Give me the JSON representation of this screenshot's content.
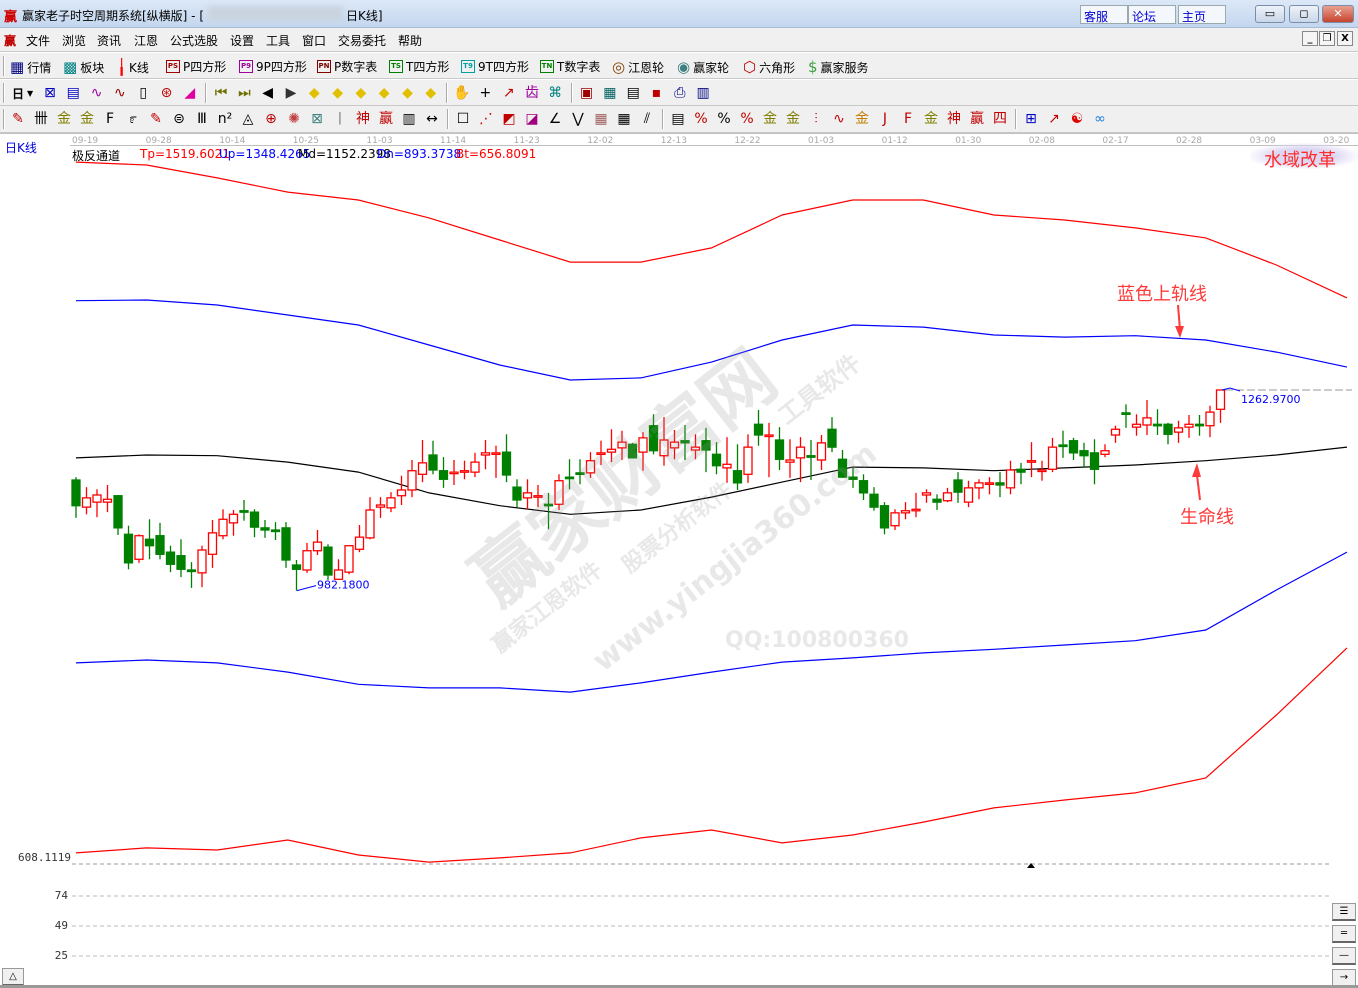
{
  "window": {
    "logo": "赢",
    "title": "赢家老子时空周期系统[纵横版] - [",
    "title_suffix": "日K线]",
    "links": [
      "客服",
      "论坛",
      "主页"
    ],
    "controls": [
      "minimize",
      "maximize",
      "close"
    ]
  },
  "menu": {
    "logo": "赢",
    "items": [
      "文件",
      "浏览",
      "资讯",
      "江恩",
      "公式选股",
      "设置",
      "工具",
      "窗口",
      "交易委托",
      "帮助"
    ]
  },
  "toolbar1": [
    {
      "label": "行情",
      "icon": "grid-table-icon",
      "glyph": "▦",
      "color": "#000080"
    },
    {
      "label": "板块",
      "icon": "blocks-icon",
      "glyph": "▩",
      "color": "#008080"
    },
    {
      "label": "K线",
      "icon": "candlestick-icon",
      "glyph": "╽",
      "color": "#ff0000"
    },
    {
      "label": "P四方形",
      "icon": "ps-icon",
      "glyph": "PS",
      "color": "#a00000",
      "box": true
    },
    {
      "label": "9P四方形",
      "icon": "p9-icon",
      "glyph": "P9",
      "color": "#a000a0",
      "box": true
    },
    {
      "label": "P数字表",
      "icon": "pn-icon",
      "glyph": "PN",
      "color": "#800000",
      "box": true
    },
    {
      "label": "T四方形",
      "icon": "ts-icon",
      "glyph": "TS",
      "color": "#008000",
      "box": true
    },
    {
      "label": "9T四方形",
      "icon": "t9-icon",
      "glyph": "T9",
      "color": "#00a0a0",
      "box": true
    },
    {
      "label": "T数字表",
      "icon": "tn-icon",
      "glyph": "TN",
      "color": "#008000",
      "box": true
    },
    {
      "label": "江恩轮",
      "icon": "gann-wheel-icon",
      "glyph": "◎",
      "color": "#804000"
    },
    {
      "label": "赢家轮",
      "icon": "big-wheel-icon",
      "glyph": "◉",
      "color": "#408080"
    },
    {
      "label": "六角形",
      "icon": "hexagon-icon",
      "glyph": "⬡",
      "color": "#c00000"
    },
    {
      "label": "赢家服务",
      "icon": "dollar-icon",
      "glyph": "$",
      "color": "#40a040"
    }
  ],
  "period": {
    "value": "日"
  },
  "toolbar2": [
    {
      "icon": "chart-style-icon",
      "glyph": "⊠",
      "color": "#0000c0"
    },
    {
      "icon": "notes-icon",
      "glyph": "▤",
      "color": "#0000c0"
    },
    {
      "icon": "wave3-icon",
      "glyph": "∿",
      "color": "#a000a0"
    },
    {
      "icon": "wave9-icon",
      "glyph": "∿",
      "color": "#a00000"
    },
    {
      "icon": "candle-type-icon",
      "glyph": "▯",
      "color": "#000"
    },
    {
      "icon": "cycle-icon",
      "glyph": "⊛",
      "color": "#c00000"
    },
    {
      "icon": "flag-icon",
      "glyph": "◢",
      "color": "#e000a0"
    },
    {
      "icon": "first-icon",
      "glyph": "⏮",
      "color": "#707000"
    },
    {
      "icon": "last-icon",
      "glyph": "⏭",
      "color": "#707000"
    },
    {
      "icon": "prev-icon",
      "glyph": "◀",
      "color": "#000"
    },
    {
      "icon": "next-icon",
      "glyph": "▶",
      "color": "#333"
    },
    {
      "icon": "left-diamond-icon",
      "glyph": "◆",
      "color": "#e0c000"
    },
    {
      "icon": "right-diamond-icon",
      "glyph": "◆",
      "color": "#e0c000"
    },
    {
      "icon": "expand-h-icon",
      "glyph": "◆",
      "color": "#e0c000"
    },
    {
      "icon": "shrink-icon",
      "glyph": "◆",
      "color": "#e0c000"
    },
    {
      "icon": "expand-icon",
      "glyph": "◆",
      "color": "#e0c000"
    },
    {
      "icon": "move-icon",
      "glyph": "◆",
      "color": "#e0c000"
    },
    {
      "icon": "hand-icon",
      "glyph": "✋",
      "color": "#000"
    },
    {
      "icon": "crosshair-icon",
      "glyph": "+",
      "color": "#000"
    },
    {
      "icon": "line-draw-icon",
      "glyph": "↗",
      "color": "#c00000"
    },
    {
      "icon": "pattern-icon",
      "glyph": "齿",
      "color": "#a000a0"
    },
    {
      "icon": "pattern2-icon",
      "glyph": "⌘",
      "color": "#008080"
    },
    {
      "icon": "calendar-icon",
      "glyph": "▣",
      "color": "#a00000"
    },
    {
      "icon": "calculator-icon",
      "glyph": "▦",
      "color": "#006060"
    },
    {
      "icon": "report-icon",
      "glyph": "▤",
      "color": "#000"
    },
    {
      "icon": "save-icon",
      "glyph": "▪",
      "color": "#c00000"
    },
    {
      "icon": "printer-icon",
      "glyph": "⎙",
      "color": "#000080"
    },
    {
      "icon": "trade-icon",
      "glyph": "▥",
      "color": "#000080"
    }
  ],
  "toolbar3": [
    {
      "icon": "pen-icon",
      "glyph": "✎",
      "color": "#c00000"
    },
    {
      "icon": "parallel-lines-icon",
      "glyph": "卌",
      "color": "#000"
    },
    {
      "icon": "gold-lines-icon",
      "glyph": "金",
      "color": "#808000"
    },
    {
      "icon": "gold-lines2-icon",
      "glyph": "金",
      "color": "#808000"
    },
    {
      "icon": "fib-lines-icon",
      "glyph": "F",
      "color": "#000"
    },
    {
      "icon": "spiral-icon",
      "glyph": "೯",
      "color": "#000"
    },
    {
      "icon": "marker-icon",
      "glyph": "✎",
      "color": "#c00000"
    },
    {
      "icon": "circle-lines-icon",
      "glyph": "⊜",
      "color": "#000"
    },
    {
      "icon": "vertical-lines-icon",
      "glyph": "Ⅲ",
      "color": "#000"
    },
    {
      "icon": "n2-icon",
      "glyph": "n²",
      "color": "#000"
    },
    {
      "icon": "triangle-icon",
      "glyph": "◬",
      "color": "#000"
    },
    {
      "icon": "target-icon",
      "glyph": "⊕",
      "color": "#c00000"
    },
    {
      "icon": "web-icon",
      "glyph": "✺",
      "color": "#c04040"
    },
    {
      "icon": "square-web-icon",
      "glyph": "⊠",
      "color": "#408080"
    },
    {
      "icon": "angle-lines-icon",
      "glyph": "ᛁ",
      "color": "#000"
    },
    {
      "icon": "god-icon",
      "glyph": "神",
      "color": "#c00000"
    },
    {
      "icon": "win-icon",
      "glyph": "赢",
      "color": "#c00000"
    },
    {
      "icon": "comb-icon",
      "glyph": "▥",
      "color": "#000"
    },
    {
      "icon": "measure-icon",
      "glyph": "↔",
      "color": "#000"
    },
    {
      "icon": "box-icon",
      "glyph": "☐",
      "color": "#000"
    },
    {
      "icon": "fan-icon",
      "glyph": "⋰",
      "color": "#c00000"
    },
    {
      "icon": "fan-box-icon",
      "glyph": "◩",
      "color": "#c00000"
    },
    {
      "icon": "fan-box2-icon",
      "glyph": "◪",
      "color": "#a00080"
    },
    {
      "icon": "angle-icon",
      "glyph": "∠",
      "color": "#000"
    },
    {
      "icon": "zigzag-icon",
      "glyph": "⋁",
      "color": "#000"
    },
    {
      "icon": "grid-icon",
      "glyph": "▦",
      "color": "#a06060"
    },
    {
      "icon": "grid2-icon",
      "glyph": "▦",
      "color": "#000"
    },
    {
      "icon": "slant-lines-icon",
      "glyph": "⫽",
      "color": "#000"
    },
    {
      "icon": "table-icon",
      "glyph": "▤",
      "color": "#000"
    },
    {
      "icon": "percent-fan-icon",
      "glyph": "%",
      "color": "#c00000"
    },
    {
      "icon": "percent-icon",
      "glyph": "%",
      "color": "#000"
    },
    {
      "icon": "percent-lines-icon",
      "glyph": "%",
      "color": "#c00000"
    },
    {
      "icon": "gold-circle-icon",
      "glyph": "金",
      "color": "#808000"
    },
    {
      "icon": "gold-lines3-icon",
      "glyph": "金",
      "color": "#808000"
    },
    {
      "icon": "ruler-icon",
      "glyph": "⫶",
      "color": "#c00000"
    },
    {
      "icon": "wave-box-icon",
      "glyph": "∿",
      "color": "#c00000"
    },
    {
      "icon": "gold-box-icon",
      "glyph": "金",
      "color": "#c08000"
    },
    {
      "icon": "j-angle-icon",
      "glyph": "J",
      "color": "#c00000"
    },
    {
      "icon": "f-angle-icon",
      "glyph": "F",
      "color": "#c00000"
    },
    {
      "icon": "gold-angle-icon",
      "glyph": "金",
      "color": "#808000"
    },
    {
      "icon": "god-angle-icon",
      "glyph": "神",
      "color": "#c00000"
    },
    {
      "icon": "win-angle-icon",
      "glyph": "赢",
      "color": "#c00000"
    },
    {
      "icon": "four-angle-icon",
      "glyph": "四",
      "color": "#c00000"
    },
    {
      "icon": "crossgrid-icon",
      "glyph": "⊞",
      "color": "#0000c0"
    },
    {
      "icon": "chart-line-icon",
      "glyph": "↗",
      "color": "#c00000"
    },
    {
      "icon": "yinyang-icon",
      "glyph": "☯",
      "color": "#e00000"
    },
    {
      "icon": "infinity-icon",
      "glyph": "∞",
      "color": "#2080e0"
    }
  ],
  "chart": {
    "period_label": "日K线",
    "indicator": {
      "name": "极反通道",
      "tp": "Tp=1519.6021",
      "up": "Up=1348.4265",
      "md": "Md=1152.2398",
      "dn": "Dn=893.3738",
      "bt": "Bt=656.8091"
    },
    "dates": [
      "09-19",
      "09-28",
      "10-14",
      "10-25",
      "11-03",
      "11-14",
      "11-23",
      "12-02",
      "12-13",
      "12-22",
      "01-03",
      "01-12",
      "01-30",
      "02-08",
      "02-17",
      "02-28",
      "03-09",
      "03-20"
    ],
    "high_label": "1262.9700",
    "low_label": "982.1800",
    "lower_axis": [
      "608.1119",
      "74",
      "49",
      "25"
    ],
    "badge": "水域改革",
    "annotations": {
      "upper_band": "蓝色上轨线",
      "life_line": "生命线"
    },
    "watermark": {
      "main": "赢家财富网",
      "sub1": "赢家江恩软件",
      "sub2": "股票分析软件",
      "url": "www.yingjia360.com",
      "tools": "工具软件",
      "qq": "QQ:100800360"
    },
    "colors": {
      "up": "#ff0000",
      "down": "#008000",
      "tp": "#ff0000",
      "upper": "#0000ff",
      "mid": "#000000",
      "lower": "#0000ff",
      "bt": "#ff0000"
    }
  },
  "chart_data": {
    "type": "candlestick",
    "candles_ohlc": [
      [
        1137,
        1141,
        1084,
        1101
      ],
      [
        1099,
        1127,
        1089,
        1112
      ],
      [
        1106,
        1124,
        1085,
        1116
      ],
      [
        1106,
        1130,
        1092,
        1110
      ],
      [
        1115,
        1116,
        1060,
        1070
      ],
      [
        1061,
        1073,
        1012,
        1021
      ],
      [
        1026,
        1061,
        1021,
        1059
      ],
      [
        1054,
        1082,
        1026,
        1045
      ],
      [
        1059,
        1077,
        1026,
        1033
      ],
      [
        1036,
        1045,
        1008,
        1019
      ],
      [
        1031,
        1054,
        1001,
        1012
      ],
      [
        1011,
        1022,
        986,
        1010
      ],
      [
        1007,
        1045,
        987,
        1039
      ],
      [
        1033,
        1081,
        1014,
        1063
      ],
      [
        1059,
        1096,
        1054,
        1082
      ],
      [
        1077,
        1095,
        1059,
        1089
      ],
      [
        1094,
        1109,
        1080,
        1092
      ],
      [
        1092,
        1096,
        1057,
        1071
      ],
      [
        1070,
        1081,
        1056,
        1067
      ],
      [
        1067,
        1078,
        1053,
        1066
      ],
      [
        1070,
        1078,
        1014,
        1025
      ],
      [
        1018,
        1025,
        982,
        1012
      ],
      [
        1011,
        1049,
        1007,
        1038
      ],
      [
        1038,
        1067,
        1032,
        1050
      ],
      [
        1043,
        1047,
        997,
        1004
      ],
      [
        998,
        1026,
        997,
        1011
      ],
      [
        1008,
        1046,
        1005,
        1045
      ],
      [
        1040,
        1074,
        1036,
        1057
      ],
      [
        1056,
        1113,
        1054,
        1095
      ],
      [
        1099,
        1113,
        1084,
        1102
      ],
      [
        1098,
        1120,
        1092,
        1112
      ],
      [
        1115,
        1143,
        1102,
        1123
      ],
      [
        1123,
        1165,
        1113,
        1150
      ],
      [
        1145,
        1193,
        1134,
        1161
      ],
      [
        1172,
        1192,
        1145,
        1151
      ],
      [
        1150,
        1169,
        1126,
        1138
      ],
      [
        1147,
        1165,
        1130,
        1148
      ],
      [
        1148,
        1164,
        1138,
        1150
      ],
      [
        1148,
        1175,
        1141,
        1162
      ],
      [
        1172,
        1193,
        1152,
        1175
      ],
      [
        1174,
        1185,
        1140,
        1175
      ],
      [
        1176,
        1201,
        1134,
        1144
      ],
      [
        1127,
        1138,
        1099,
        1109
      ],
      [
        1112,
        1138,
        1096,
        1119
      ],
      [
        1113,
        1130,
        1099,
        1115
      ],
      [
        1103,
        1119,
        1068,
        1102
      ],
      [
        1103,
        1145,
        1095,
        1136
      ],
      [
        1141,
        1166,
        1124,
        1140
      ],
      [
        1147,
        1166,
        1131,
        1145
      ],
      [
        1147,
        1176,
        1140,
        1164
      ],
      [
        1173,
        1192,
        1158,
        1175
      ],
      [
        1176,
        1208,
        1162,
        1180
      ],
      [
        1182,
        1206,
        1165,
        1190
      ],
      [
        1187,
        1189,
        1168,
        1168
      ],
      [
        1176,
        1204,
        1150,
        1196
      ],
      [
        1213,
        1229,
        1173,
        1178
      ],
      [
        1171,
        1225,
        1157,
        1193
      ],
      [
        1182,
        1207,
        1166,
        1190
      ],
      [
        1192,
        1214,
        1165,
        1189
      ],
      [
        1179,
        1201,
        1166,
        1183
      ],
      [
        1192,
        1210,
        1148,
        1179
      ],
      [
        1173,
        1190,
        1145,
        1157
      ],
      [
        1154,
        1197,
        1133,
        1159
      ],
      [
        1150,
        1187,
        1123,
        1133
      ],
      [
        1145,
        1201,
        1133,
        1183
      ],
      [
        1215,
        1235,
        1185,
        1200
      ],
      [
        1199,
        1217,
        1141,
        1200
      ],
      [
        1193,
        1211,
        1151,
        1166
      ],
      [
        1162,
        1194,
        1140,
        1165
      ],
      [
        1168,
        1197,
        1134,
        1183
      ],
      [
        1171,
        1193,
        1137,
        1169
      ],
      [
        1165,
        1200,
        1151,
        1189
      ],
      [
        1208,
        1225,
        1176,
        1183
      ],
      [
        1166,
        1179,
        1140,
        1141
      ],
      [
        1141,
        1154,
        1126,
        1138
      ],
      [
        1136,
        1145,
        1109,
        1119
      ],
      [
        1117,
        1127,
        1094,
        1099
      ],
      [
        1101,
        1106,
        1061,
        1070
      ],
      [
        1073,
        1096,
        1067,
        1091
      ],
      [
        1091,
        1106,
        1082,
        1094
      ],
      [
        1095,
        1119,
        1085,
        1096
      ],
      [
        1116,
        1124,
        1105,
        1119
      ],
      [
        1110,
        1117,
        1095,
        1106
      ],
      [
        1108,
        1126,
        1106,
        1119
      ],
      [
        1137,
        1148,
        1105,
        1120
      ],
      [
        1106,
        1136,
        1099,
        1126
      ],
      [
        1126,
        1138,
        1110,
        1133
      ],
      [
        1131,
        1141,
        1117,
        1133
      ],
      [
        1133,
        1148,
        1113,
        1130
      ],
      [
        1126,
        1164,
        1117,
        1151
      ],
      [
        1152,
        1161,
        1131,
        1148
      ],
      [
        1162,
        1190,
        1141,
        1164
      ],
      [
        1150,
        1164,
        1136,
        1151
      ],
      [
        1152,
        1196,
        1148,
        1183
      ],
      [
        1186,
        1206,
        1168,
        1185
      ],
      [
        1192,
        1196,
        1165,
        1175
      ],
      [
        1178,
        1189,
        1154,
        1171
      ],
      [
        1175,
        1194,
        1131,
        1152
      ],
      [
        1173,
        1187,
        1169,
        1178
      ],
      [
        1200,
        1213,
        1189,
        1208
      ],
      [
        1231,
        1243,
        1210,
        1229
      ],
      [
        1211,
        1229,
        1199,
        1215
      ],
      [
        1214,
        1249,
        1200,
        1224
      ],
      [
        1215,
        1236,
        1200,
        1214
      ],
      [
        1215,
        1217,
        1187,
        1201
      ],
      [
        1204,
        1220,
        1189,
        1210
      ],
      [
        1211,
        1228,
        1196,
        1215
      ],
      [
        1215,
        1228,
        1199,
        1213
      ],
      [
        1213,
        1241,
        1197,
        1232
      ],
      [
        1236,
        1263,
        1217,
        1263
      ]
    ],
    "band_lines": {
      "tp": [
        1582,
        1578,
        1560,
        1540,
        1529,
        1504,
        1473,
        1442,
        1442,
        1462,
        1508,
        1529,
        1529,
        1508,
        1501,
        1490,
        1476,
        1438,
        1392
      ],
      "up": [
        1388,
        1389,
        1382,
        1368,
        1354,
        1326,
        1298,
        1277,
        1280,
        1302,
        1333,
        1354,
        1351,
        1340,
        1337,
        1339,
        1333,
        1316,
        1295
      ],
      "md": [
        1168,
        1172,
        1171,
        1162,
        1148,
        1119,
        1101,
        1089,
        1095,
        1113,
        1134,
        1155,
        1154,
        1150,
        1154,
        1158,
        1164,
        1172,
        1183
      ],
      "dn": [
        881,
        885,
        881,
        868,
        851,
        846,
        846,
        840,
        853,
        868,
        882,
        888,
        895,
        900,
        906,
        912,
        927,
        983,
        1036
      ],
      "bt": [
        615,
        622,
        619,
        633,
        612,
        602,
        608,
        615,
        636,
        647,
        629,
        640,
        658,
        678,
        689,
        699,
        720,
        808,
        902
      ]
    },
    "y_label_ref": {
      "high": 1262.97,
      "low": 982.18,
      "bottom": 608.1119
    }
  }
}
